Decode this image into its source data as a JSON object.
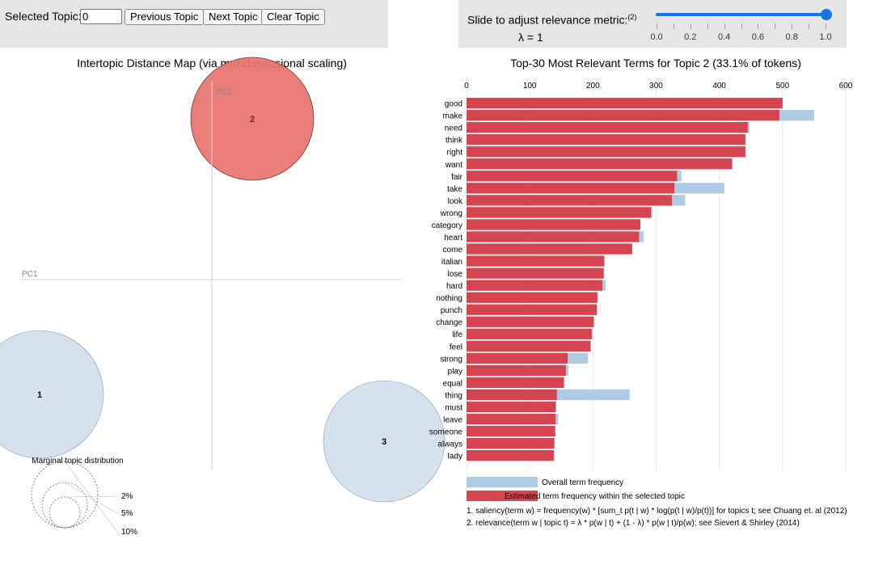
{
  "controls": {
    "selected_topic_label": "Selected Topic:",
    "selected_topic_value": "0",
    "prev_label": "Previous Topic",
    "next_label": "Next Topic",
    "clear_label": "Clear Topic",
    "slider_label": "Slide to adjust relevance metric:",
    "slider_footnote": "(2)",
    "lambda_label": "λ = 1",
    "lambda_value": 1.0,
    "slider_ticks": [
      "0.0",
      "0.2",
      "0.4",
      "0.6",
      "0.8",
      "1.0"
    ]
  },
  "topic_map": {
    "title": "Intertopic Distance Map (via multidimensional scaling)",
    "pc1_label": "PC1",
    "pc2_label": "PC2",
    "topics": [
      {
        "id": "1",
        "selected": false
      },
      {
        "id": "2",
        "selected": true
      },
      {
        "id": "3",
        "selected": false
      }
    ],
    "legend_title": "Marginal topic distribution",
    "legend_items": [
      "2%",
      "5%",
      "10%"
    ]
  },
  "chart_data": {
    "type": "bar",
    "orientation": "horizontal",
    "title": "Top-30 Most Relevant Terms for Topic 2 (33.1% of tokens)",
    "xlim": [
      0,
      600
    ],
    "xticks": [
      "0",
      "100",
      "200",
      "300",
      "400",
      "500",
      "600"
    ],
    "categories": [
      "good",
      "make",
      "need",
      "think",
      "right",
      "want",
      "fair",
      "take",
      "look",
      "wrong",
      "category",
      "heart",
      "come",
      "italian",
      "lose",
      "hard",
      "nothing",
      "punch",
      "change",
      "life",
      "feel",
      "strong",
      "play",
      "equal",
      "thing",
      "must",
      "leave",
      "someone",
      "always",
      "lady"
    ],
    "series": [
      {
        "name": "Overall term frequency",
        "color": "#aecbe3",
        "values": [
          500,
          550,
          448,
          442,
          442,
          421,
          340,
          408,
          346,
          294,
          275,
          280,
          262,
          218,
          218,
          220,
          208,
          207,
          202,
          200,
          197,
          192,
          161,
          155,
          258,
          142,
          145,
          141,
          139,
          139
        ]
      },
      {
        "name": "Estimated term frequency within the selected topic",
        "color": "#d6454f",
        "values": [
          500,
          495,
          445,
          441,
          441,
          420,
          333,
          329,
          325,
          292,
          275,
          273,
          262,
          218,
          217,
          215,
          207,
          206,
          201,
          198,
          196,
          160,
          157,
          154,
          143,
          141,
          141,
          140,
          139,
          138
        ]
      }
    ],
    "legend": [
      "Overall term frequency",
      "Estimated term frequency within the selected topic"
    ]
  },
  "footnotes": [
    "1. saliency(term w) = frequency(w) * [sum_t p(t | w) * log(p(t | w)/p(t))] for topics t; see Chuang et. al (2012)",
    "2. relevance(term w | topic t) = λ * p(w | t) + (1 - λ) * p(w | t)/p(w); see Sievert & Shirley (2014)"
  ],
  "colors": {
    "selected_topic": "#e8746f",
    "unselected_topic": "#cfdcec",
    "overall_bar": "#aecbe3",
    "topic_bar": "#d6454f",
    "slider": "#1a73e8"
  }
}
